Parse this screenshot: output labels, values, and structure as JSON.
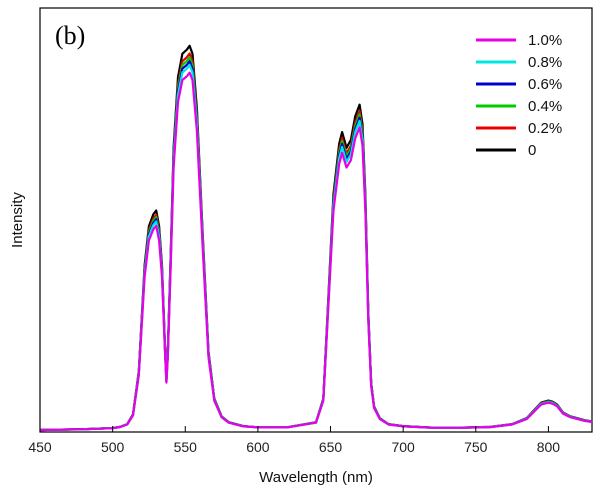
{
  "chart_data": {
    "type": "line",
    "panel_label": "(b)",
    "xlabel": "Wavelength (nm)",
    "ylabel": "Intensity",
    "xlim": [
      450,
      830
    ],
    "ylim": [
      0,
      1.0
    ],
    "x_ticks": [
      450,
      500,
      550,
      600,
      650,
      700,
      750,
      800
    ],
    "y_ticks_shown": false,
    "grid": false,
    "legend_position": "top-right",
    "series": [
      {
        "name": "1.0%",
        "color": "#e600e6",
        "scale": 0.93
      },
      {
        "name": "0.8%",
        "color": "#00e5e5",
        "scale": 0.95
      },
      {
        "name": "0.6%",
        "color": "#0000cc",
        "scale": 0.96
      },
      {
        "name": "0.4%",
        "color": "#00cc00",
        "scale": 0.97
      },
      {
        "name": "0.2%",
        "color": "#e60000",
        "scale": 0.98
      },
      {
        "name": "0",
        "color": "#000000",
        "scale": 1.0
      }
    ],
    "reference_profile": {
      "x": [
        450,
        480,
        500,
        505,
        510,
        514,
        518,
        522,
        525,
        528,
        530,
        532,
        534,
        536,
        537,
        538,
        540,
        542,
        545,
        548,
        551,
        553,
        555,
        558,
        562,
        566,
        570,
        575,
        580,
        590,
        600,
        620,
        640,
        645,
        648,
        652,
        656,
        658,
        661,
        664,
        667,
        670,
        672,
        674,
        676,
        678,
        680,
        684,
        690,
        700,
        720,
        740,
        760,
        775,
        785,
        790,
        795,
        800,
        803,
        806,
        810,
        815,
        820,
        825,
        830
      ],
      "y": [
        0.0,
        0.002,
        0.005,
        0.008,
        0.015,
        0.04,
        0.15,
        0.42,
        0.52,
        0.55,
        0.56,
        0.52,
        0.42,
        0.22,
        0.13,
        0.2,
        0.45,
        0.72,
        0.9,
        0.96,
        0.97,
        0.98,
        0.96,
        0.82,
        0.5,
        0.2,
        0.08,
        0.035,
        0.02,
        0.01,
        0.007,
        0.007,
        0.02,
        0.08,
        0.3,
        0.6,
        0.73,
        0.76,
        0.72,
        0.74,
        0.8,
        0.83,
        0.78,
        0.6,
        0.3,
        0.12,
        0.06,
        0.03,
        0.015,
        0.01,
        0.006,
        0.006,
        0.008,
        0.015,
        0.03,
        0.05,
        0.07,
        0.075,
        0.072,
        0.065,
        0.045,
        0.035,
        0.03,
        0.025,
        0.022
      ]
    }
  }
}
